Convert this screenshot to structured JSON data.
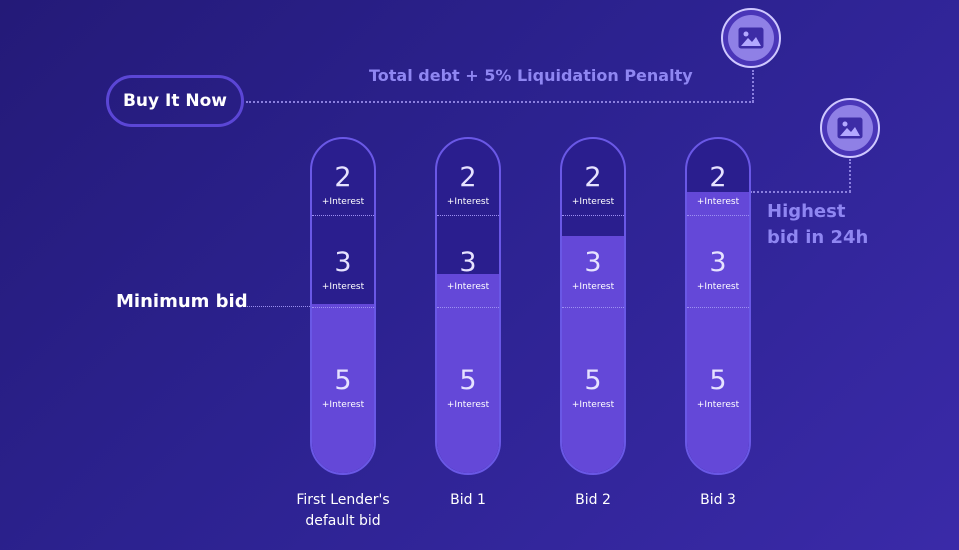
{
  "buy_now": {
    "label": "Buy It Now"
  },
  "buy_now_caption": "Total debt + 5% Liquidation Penalty",
  "highest_caption": {
    "line1": "Highest",
    "line2": "bid in 24h"
  },
  "minimum_bid_label": "Minimum bid",
  "icons": {
    "top": "image-placeholder-icon",
    "right": "image-placeholder-icon"
  },
  "colors": {
    "background": "#2c2290",
    "fill": "#6448d8",
    "tube_border": "#6a58e6",
    "caption": "#8f86f2"
  },
  "tubes": [
    {
      "label_line1": "First Lender's",
      "label_line2": "default bid",
      "fill_fraction": 0.5,
      "segments": [
        {
          "value": "2",
          "note": "+Interest"
        },
        {
          "value": "3",
          "note": "+Interest"
        },
        {
          "value": "5",
          "note": "+Interest"
        }
      ]
    },
    {
      "label_line1": "Bid 1",
      "label_line2": "",
      "fill_fraction": 0.59,
      "segments": [
        {
          "value": "2",
          "note": "+Interest"
        },
        {
          "value": "3",
          "note": "+Interest"
        },
        {
          "value": "5",
          "note": "+Interest"
        }
      ]
    },
    {
      "label_line1": "Bid 2",
      "label_line2": "",
      "fill_fraction": 0.7,
      "segments": [
        {
          "value": "2",
          "note": "+Interest"
        },
        {
          "value": "3",
          "note": "+Interest"
        },
        {
          "value": "5",
          "note": "+Interest"
        }
      ]
    },
    {
      "label_line1": "Bid 3",
      "label_line2": "",
      "fill_fraction": 0.83,
      "segments": [
        {
          "value": "2",
          "note": "+Interest"
        },
        {
          "value": "3",
          "note": "+Interest"
        },
        {
          "value": "5",
          "note": "+Interest"
        }
      ]
    }
  ]
}
